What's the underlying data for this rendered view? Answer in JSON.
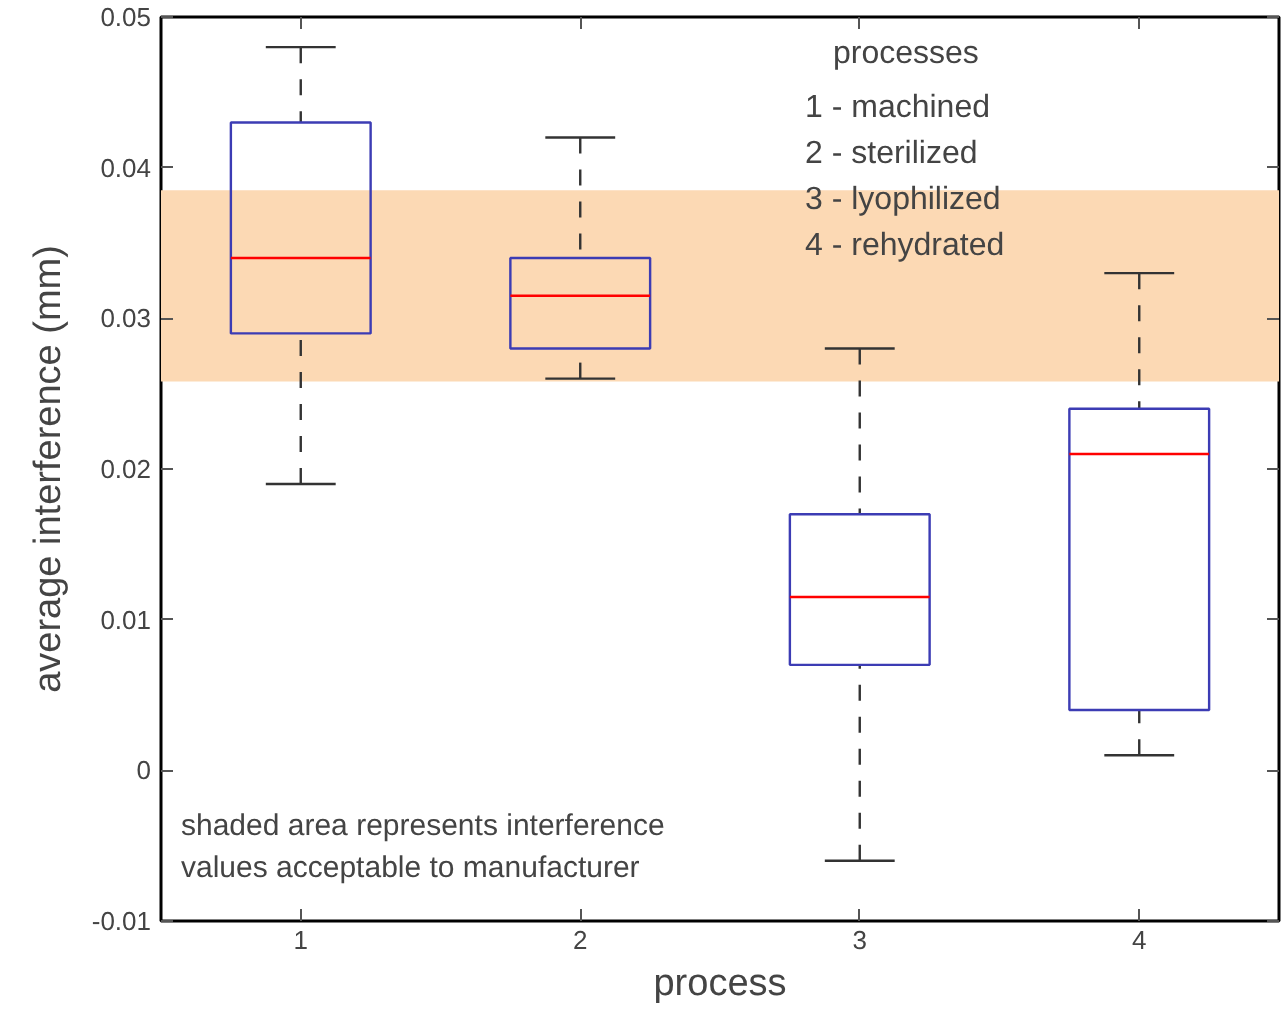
{
  "chart_data": {
    "type": "box",
    "xlabel": "process",
    "ylabel": "average interference (mm)",
    "categories": [
      "1",
      "2",
      "3",
      "4"
    ],
    "series": [
      {
        "color": "#3c3cb4",
        "boxes": [
          {
            "low": 0.019,
            "q1": 0.029,
            "median": 0.034,
            "q3": 0.043,
            "high": 0.048
          },
          {
            "low": 0.026,
            "q1": 0.028,
            "median": 0.0315,
            "q3": 0.034,
            "high": 0.042
          },
          {
            "low": -0.006,
            "q1": 0.007,
            "median": 0.0115,
            "q3": 0.017,
            "high": 0.028
          },
          {
            "low": 0.001,
            "q1": 0.004,
            "median": 0.021,
            "q3": 0.024,
            "high": 0.033
          }
        ]
      }
    ],
    "ylim": [
      -0.01,
      0.05
    ],
    "yticks": [
      -0.01,
      0,
      0.01,
      0.02,
      0.03,
      0.04,
      0.05
    ],
    "bands": [
      {
        "axis": "y",
        "from": 0.0258,
        "to": 0.0385,
        "color": "#fcd9b4"
      }
    ],
    "annotations": [
      "processes",
      "1 - machined",
      "2 - sterilized",
      "3 - lyophilized",
      "4 - rehydrated",
      "shaded area represents interference\nvalues acceptable to manufacturer"
    ],
    "grid": false
  }
}
